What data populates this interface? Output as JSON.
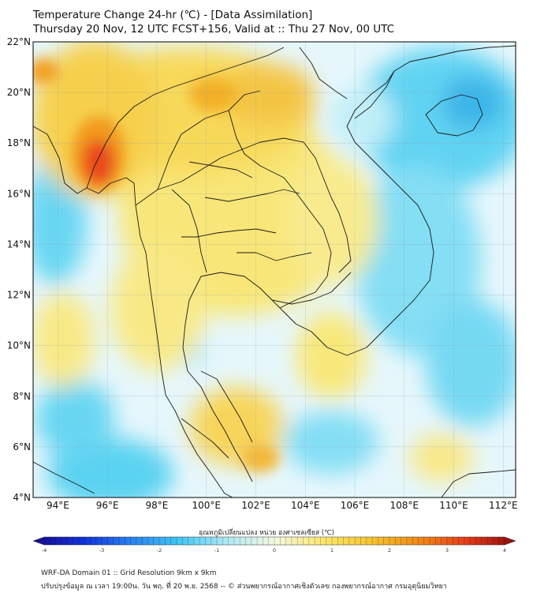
{
  "header": {
    "title": "Temperature Change 24-hr (℃) - [Data Assimilation]",
    "subtitle": "Thursday 20 Nov, 12 UTC FCST+156, Valid at :: Thu 27 Nov, 00 UTC"
  },
  "map": {
    "lat_labels": [
      "22°N",
      "20°N",
      "18°N",
      "16°N",
      "14°N",
      "12°N",
      "10°N",
      "8°N",
      "6°N",
      "4°N"
    ],
    "lon_labels": [
      "94°E",
      "96°E",
      "98°E",
      "100°E",
      "102°E",
      "104°E",
      "106°E",
      "108°E",
      "110°E",
      "112°E"
    ],
    "lat_range": [
      4,
      22
    ],
    "lon_range": [
      93,
      112.5
    ],
    "colors": {
      "ocean_neutral": "#e6f7fc",
      "cool": "#33ccf0",
      "warm_yellow": "#fbe864",
      "warm_orange": "#f5b21c",
      "hot_red": "#e8301a",
      "border": "#1a1a1a"
    }
  },
  "colorbar": {
    "title": "อุณหภูมิเปลี่ยนแปลง หน่วย องศาเซลเซียส (℃)",
    "min": -4,
    "max": 4,
    "tick_labels": [
      "-4",
      "-3",
      "-2",
      "-1",
      "0",
      "1",
      "2",
      "3",
      "4"
    ],
    "palette": [
      "#1a0a8a",
      "#1030d8",
      "#2a7ef0",
      "#3fc6f2",
      "#aee8f6",
      "#f4f8e0",
      "#fbe870",
      "#f6c430",
      "#f08a18",
      "#e53a18",
      "#8a0c0c"
    ]
  },
  "footer": {
    "line1": "WRF-DA Domain 01 :: Grid Resolution 9km x 9km",
    "line2": "ปรับปรุงข้อมูล ณ เวลา 19:00น. วัน พฤ. ที่ 20 พ.ย. 2568 -- © ส่วนพยากรณ์อากาศเชิงตัวเลข กองพยากรณ์อากาศ กรมอุตุนิยมวิทยา"
  }
}
